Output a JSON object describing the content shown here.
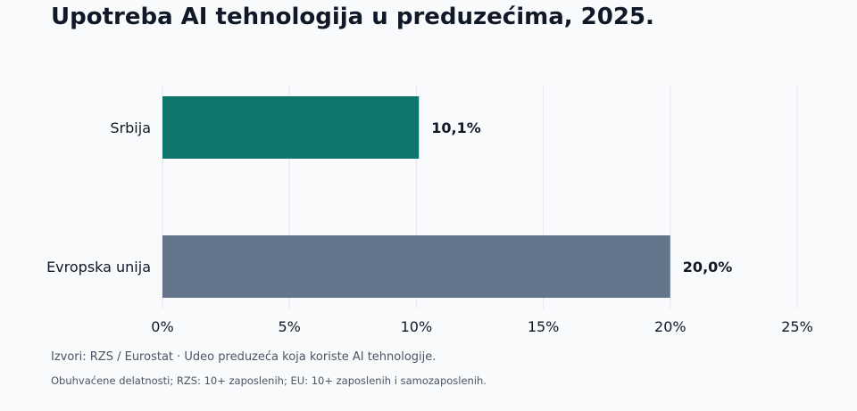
{
  "title": "Upotreba AI tehnologija u preduzećima, 2025.",
  "footer": {
    "source": "Izvori: RZS / Eurostat · Udeo preduzeća koja koriste AI tehnologije.",
    "note": "Obuhvaćene delatnosti; RZS: 10+ zaposlenih; EU: 10+ zaposlenih i samozaposlenih."
  },
  "chart_data": {
    "type": "bar",
    "orientation": "horizontal",
    "categories": [
      "Srbija",
      "Evropska unija"
    ],
    "values": [
      10.1,
      20.0
    ],
    "value_labels": [
      "10,1%",
      "20,0%"
    ],
    "colors": [
      "#0f766e",
      "#64748b"
    ],
    "xlim": [
      0,
      25
    ],
    "xticks": [
      0,
      5,
      10,
      15,
      20,
      25
    ],
    "xtick_labels": [
      "0%",
      "5%",
      "10%",
      "15%",
      "20%",
      "25%"
    ],
    "grid": true,
    "title": "Upotreba AI tehnologija u preduzećima, 2025."
  }
}
